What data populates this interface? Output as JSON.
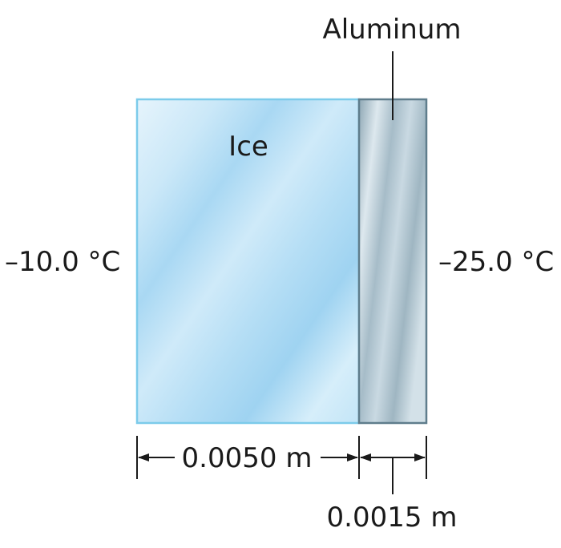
{
  "materials": {
    "ice": "Ice",
    "aluminum": "Aluminum"
  },
  "temperatures": {
    "left": "–10.0 °C",
    "right": "–25.0 °C"
  },
  "dimensions": {
    "ice_thickness": "0.0050 m",
    "aluminum_thickness": "0.0015 m"
  },
  "colors": {
    "ice_fill": "#bfe3f6",
    "ice_border": "#7ccbea",
    "aluminum_fill": "#bccfd9",
    "aluminum_border": "#5f7d8c",
    "line": "#1a1a1a"
  }
}
